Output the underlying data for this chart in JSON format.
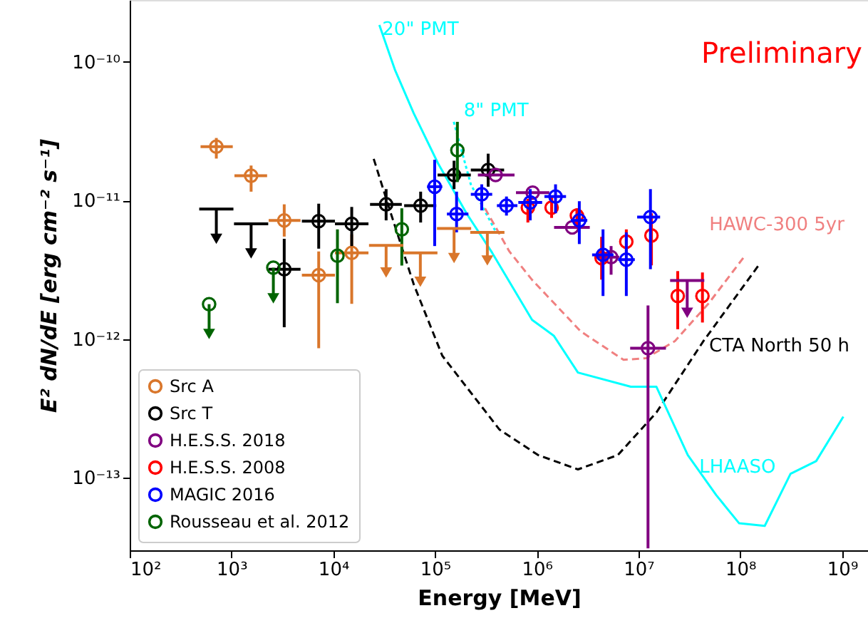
{
  "chart_data": {
    "type": "scatter",
    "xlabel": "Energy [MeV]",
    "ylabel": "E² dN/dE [erg cm⁻² s⁻¹]",
    "log": "xy",
    "legend": "bottom left",
    "xlim": [
      100,
      1800000000
    ],
    "ylim": [
      3e-14,
      2.8e-10
    ],
    "xticks": [
      {
        "value": 100,
        "label": "10²"
      },
      {
        "value": 1000,
        "label": "10³"
      },
      {
        "value": 10000,
        "label": "10⁴"
      },
      {
        "value": 100000,
        "label": "10⁵"
      },
      {
        "value": 1000000,
        "label": "10⁶"
      },
      {
        "value": 10000000,
        "label": "10⁷"
      },
      {
        "value": 100000000,
        "label": "10⁸"
      },
      {
        "value": 1000000000,
        "label": "10⁹"
      }
    ],
    "yticks": [
      {
        "value": 1e-13,
        "label": "10⁻¹³"
      },
      {
        "value": 1e-12,
        "label": "10⁻¹²"
      },
      {
        "value": 1e-11,
        "label": "10⁻¹¹"
      },
      {
        "value": 1e-10,
        "label": "10⁻¹⁰"
      }
    ],
    "annotations": [
      "Preliminary",
      "20\" PMT"
    ],
    "series": [
      {
        "name": "Src A",
        "color": "#d9762b",
        "marker": "circle",
        "x": [
          710,
          1560,
          3300,
          7200,
          15200
        ],
        "values": [
          2.45e-11,
          1.51e-11,
          7.2e-12,
          2.9e-12,
          4.2e-12
        ],
        "xerrors": [
          [
            497,
            1030
          ],
          [
            1070,
            2240
          ],
          [
            2320,
            4770
          ],
          [
            4920,
            10400
          ],
          [
            10400,
            22200
          ]
        ],
        "errors": [
          [
            2.01e-11,
            2.83e-11
          ],
          [
            1.16e-11,
            1.79e-11
          ],
          [
            5.5e-12,
            9.4e-12
          ],
          [
            8.6e-13,
            4.3e-12
          ],
          [
            1.8e-12,
            5.7e-12
          ]
        ]
      },
      {
        "name": "Src T",
        "color": "#000000",
        "marker": "circle",
        "x": [
          3300,
          7200,
          15200,
          33100,
          72300,
          154000,
          333000
        ],
        "values": [
          3.2e-12,
          7.1e-12,
          6.8e-12,
          9.4e-12,
          9.2e-12,
          1.53e-11,
          1.66e-11
        ],
        "xerrors": [
          [
            2320,
            4770
          ],
          [
            4920,
            10400
          ],
          [
            10400,
            22200
          ],
          [
            23000,
            47200
          ],
          [
            49800,
            103000
          ],
          [
            106000,
            225000
          ],
          [
            225000,
            478000
          ]
        ],
        "errors": [
          [
            1.22e-12,
            5.3e-12
          ],
          [
            4.5e-12,
            9.5e-12
          ],
          [
            4.7e-12,
            9e-12
          ],
          [
            7.2e-12,
            1.21e-11
          ],
          [
            6.95e-12,
            1.16e-11
          ],
          [
            1.21e-11,
            1.94e-11
          ],
          [
            1.26e-11,
            2.18e-11
          ]
        ]
      },
      {
        "name": "H.E.S.S. 2018",
        "color": "#800080",
        "marker": "circle",
        "x": [
          394000,
          912000,
          2230000,
          5380000,
          12400000
        ],
        "values": [
          1.53e-11,
          1.14e-11,
          6.4e-12,
          3.91e-12,
          8.6e-13
        ],
        "xerrors": [
          [
            264000,
            605000
          ],
          [
            625000,
            1330000
          ],
          [
            1480000,
            3320000
          ],
          [
            3690000,
            6460000
          ],
          [
            8280000,
            18600000
          ]
        ],
        "errors": [
          null,
          null,
          null,
          [
            2.92e-12,
            4.7e-12
          ],
          [
            3.1e-14,
            1.75e-12
          ]
        ]
      },
      {
        "name": "H.E.S.S. 2008",
        "color": "#ff0000",
        "marker": "circle",
        "x": [
          818000,
          1400000,
          2480000,
          4340000,
          7590000,
          13400000,
          24300000,
          42500000
        ],
        "values": [
          8.9e-12,
          8.9e-12,
          7.8e-12,
          3.85e-12,
          5.06e-12,
          5.6e-12,
          2.05e-12,
          2.05e-12
        ],
        "errors": [
          [
            6.95e-12,
            1.03e-11
          ],
          [
            7.5e-12,
            1.07e-11
          ],
          [
            6.4e-12,
            8.8e-12
          ],
          [
            2.69e-12,
            5.48e-12
          ],
          [
            4e-12,
            6.2e-12
          ],
          [
            3.41e-12,
            8.1e-12
          ],
          [
            1.18e-12,
            3.1e-12
          ],
          [
            1.32e-12,
            3.03e-12
          ]
        ]
      },
      {
        "name": "MAGIC 2016",
        "color": "#0000ff",
        "marker": "circle",
        "x": [
          99300,
          163000,
          288000,
          504000,
          863000,
          1530000,
          2620000,
          4480000,
          7590000,
          13100000
        ],
        "values": [
          1.26e-11,
          8e-12,
          1.11e-11,
          9.2e-12,
          9.7e-12,
          1.07e-11,
          7.2e-12,
          4.06e-12,
          3.75e-12,
          7.6e-12
        ],
        "xerrors": [
          [
            83600,
            118000
          ],
          [
            131000,
            213000
          ],
          [
            225000,
            365000
          ],
          [
            406000,
            646000
          ],
          [
            659000,
            1130000
          ],
          [
            1190000,
            1940000
          ],
          [
            2160000,
            3140000
          ],
          [
            3500000,
            5680000
          ],
          [
            6300000,
            9200000
          ],
          [
            9700000,
            16300000
          ]
        ],
        "errors": [
          [
            4.7e-12,
            1.97e-11
          ],
          [
            5.9e-12,
            1.16e-11
          ],
          [
            8.5e-12,
            1.31e-11
          ],
          [
            7.8e-12,
            1.07e-11
          ],
          [
            7.2e-12,
            1.21e-11
          ],
          [
            8.1e-12,
            1.31e-11
          ],
          [
            4.86e-12,
            9.9e-12
          ],
          [
            2.05e-12,
            6.2e-12
          ],
          [
            2.05e-12,
            5.9e-12
          ],
          [
            3.2e-12,
            1.21e-11
          ]
        ]
      },
      {
        "name": "Rousseau et al. 2012",
        "color": "#006400",
        "marker": "circle",
        "x": [
          11000,
          47200,
          166000
        ],
        "values": [
          4e-12,
          6.2e-12,
          2.31e-11
        ],
        "errors": [
          [
            1.82e-12,
            6.2e-12
          ],
          [
            3.4e-12,
            8.8e-12
          ],
          [
            1.36e-11,
            3.7e-11
          ]
        ]
      },
      {
        "color": "#d9762b",
        "marker": "triangle",
        "x": [
          33100,
          71800,
          154000,
          327000
        ],
        "values": [
          3.03e-12,
          2.6e-12,
          3.85e-12,
          3.7e-12
        ],
        "errors": [
          [
            3.03e-12,
            4.75e-12
          ],
          [
            2.6e-12,
            4.2e-12
          ],
          [
            3.85e-12,
            6.3e-12
          ],
          [
            3.7e-12,
            5.9e-12
          ]
        ]
      },
      {
        "color": "#000000",
        "marker": "triangle",
        "x": [
          710,
          1560
        ],
        "values": [
          5.3e-12,
          4.16e-12
        ],
        "errors": [
          [
            5.3e-12,
            8.7e-12
          ],
          [
            4.16e-12,
            6.8e-12
          ]
        ]
      },
      {
        "color": "#800080",
        "marker": "triangle",
        "x": [
          30100000
        ],
        "values": [
          1.55e-12
        ],
        "errors": [
          [
            1.55e-12,
            2.65e-12
          ]
        ]
      },
      {
        "color": "#006400",
        "marker": "circle",
        "x": [
          603,
          2580
        ],
        "values": [
          1.79e-12,
          3.28e-12
        ]
      },
      {
        "color": "#006400",
        "marker": "triangle",
        "x": [
          603,
          2580
        ],
        "values": [
          1.09e-12,
          1.97e-12
        ],
        "errors": [
          [
            1.09e-12,
            1.79e-12
          ],
          [
            1.97e-12,
            3.28e-12
          ]
        ]
      },
      {
        "name": "8\" PMT",
        "type": "line",
        "line_style": "dotted",
        "color": "#00ffff",
        "x": [
          153000,
          225000,
          389000
        ],
        "values": [
          3.7e-11,
          1.31e-11,
          6.1e-12
        ]
      },
      {
        "name": "HAWC-300 5yr",
        "type": "line",
        "line_style": "dashed",
        "color": "#f08080",
        "x": [
          310000,
          538000,
          900000,
          2700000,
          7130000,
          11900000,
          22800000,
          49400000,
          111000000
        ],
        "values": [
          8.8e-12,
          4.3e-12,
          2.68e-12,
          1.14e-12,
          7.1e-13,
          7.3e-13,
          9.7e-13,
          1.83e-12,
          4e-12
        ]
      },
      {
        "name": "CTA North 50 h",
        "type": "line",
        "line_style": "dashed",
        "color": "#000000",
        "x": [
          25000,
          35700,
          61800,
          118000,
          430000,
          1030000,
          2540000,
          6270000,
          15000000,
          43500000,
          158000000
        ],
        "values": [
          2e-11,
          8.7e-12,
          2.49e-12,
          7.6e-13,
          2.23e-13,
          1.46e-13,
          1.15e-13,
          1.46e-13,
          2.96e-13,
          9.7e-13,
          3.56e-12
        ]
      },
      {
        "name": "LHAASO",
        "type": "line",
        "line_style": "solid",
        "color": "#00ffff",
        "x": [
          28400,
          40600,
          61800,
          107000,
          204000,
          365000,
          900000,
          1470000,
          2540000,
          8400000,
          15000000,
          30500000,
          58100000,
          97500000,
          174000000,
          312000000,
          557000000,
          1030000000
        ],
        "values": [
          1.85e-10,
          8.7e-11,
          4.27e-11,
          1.86e-11,
          8.1e-12,
          4.2e-12,
          1.38e-12,
          1.06e-12,
          5.75e-13,
          4.54e-13,
          4.54e-13,
          1.46e-13,
          7.5e-14,
          4.7e-14,
          4.5e-14,
          1.07e-13,
          1.32e-13,
          2.76e-13
        ]
      }
    ]
  }
}
